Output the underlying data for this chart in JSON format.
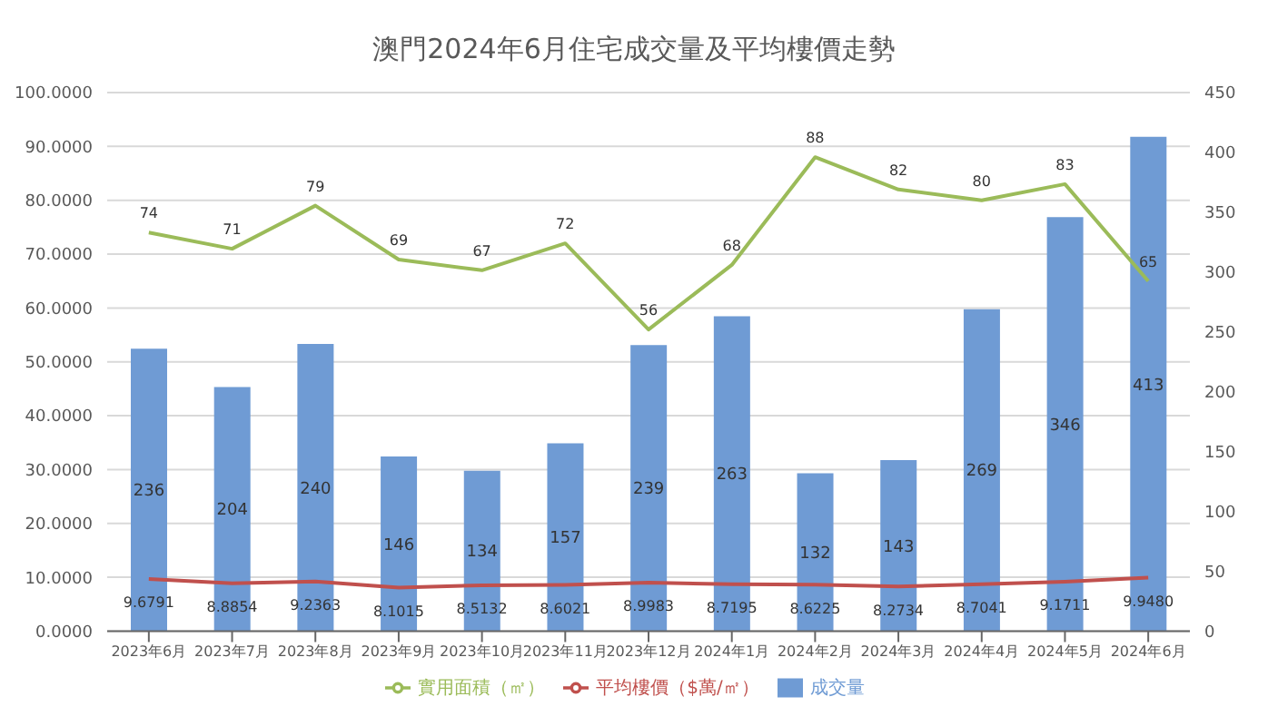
{
  "chart_data": {
    "type": "bar",
    "title": "澳門2024年6月住宅成交量及平均樓價走勢",
    "categories": [
      "2023年6月",
      "2023年7月",
      "2023年8月",
      "2023年9月",
      "2023年10月",
      "2023年11月",
      "2023年12月",
      "2024年1月",
      "2024年2月",
      "2024年3月",
      "2024年4月",
      "2024年5月",
      "2024年6月"
    ],
    "series": [
      {
        "name": "成交量",
        "axis": "y2",
        "color": "#6f9bd4",
        "values": [
          236,
          204,
          240,
          146,
          134,
          157,
          239,
          263,
          132,
          143,
          269,
          346,
          413
        ]
      },
      {
        "name": "平均樓價（$萬/㎡）",
        "type": "line",
        "color": "#c0504d",
        "values": [
          9.6791,
          8.8854,
          9.2363,
          8.1015,
          8.5132,
          8.6021,
          8.9983,
          8.7195,
          8.6225,
          8.2734,
          8.7041,
          9.1711,
          9.948
        ],
        "value_labels": [
          "9.6791",
          "8.8854",
          "9.2363",
          "8.1015",
          "8.5132",
          "8.6021",
          "8.9983",
          "8.7195",
          "8.6225",
          "8.2734",
          "8.7041",
          "9.1711",
          "9.9480"
        ]
      },
      {
        "name": "實用面積（㎡）",
        "type": "line",
        "color": "#9bbb59",
        "values": [
          74,
          71,
          79,
          69,
          67,
          72,
          56,
          68,
          88,
          82,
          80,
          83,
          65
        ]
      }
    ],
    "ylim": [
      0,
      100
    ],
    "yticks": [
      {
        "value": 0,
        "label": "0.0000"
      },
      {
        "value": 10,
        "label": "10.0000"
      },
      {
        "value": 20,
        "label": "20.0000"
      },
      {
        "value": 30,
        "label": "30.0000"
      },
      {
        "value": 40,
        "label": "40.0000"
      },
      {
        "value": 50,
        "label": "50.0000"
      },
      {
        "value": 60,
        "label": "60.0000"
      },
      {
        "value": 70,
        "label": "70.0000"
      },
      {
        "value": 80,
        "label": "80.0000"
      },
      {
        "value": 90,
        "label": "90.0000"
      },
      {
        "value": 100,
        "label": "100.0000"
      }
    ],
    "y2lim": [
      0,
      450
    ],
    "y2ticks": [
      0,
      50,
      100,
      150,
      200,
      250,
      300,
      350,
      400,
      450
    ],
    "grid": "y",
    "legend": "bottom",
    "data_labels": true,
    "marker": "none"
  }
}
